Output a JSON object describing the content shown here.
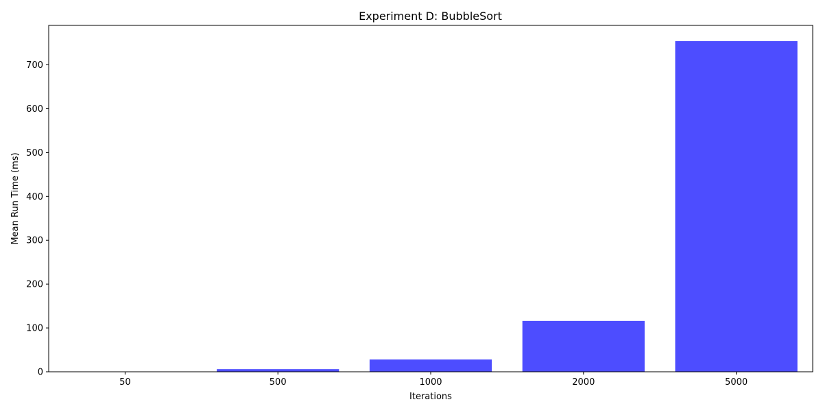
{
  "chart_data": {
    "type": "bar",
    "title": "Experiment D: BubbleSort",
    "xlabel": "Iterations",
    "ylabel": "Mean Run Time (ms)",
    "categories": [
      "50",
      "500",
      "1000",
      "2000",
      "5000"
    ],
    "values": [
      0.3,
      6,
      28,
      116,
      754
    ],
    "ylim": [
      0,
      790
    ],
    "yticks": [
      0,
      100,
      200,
      300,
      400,
      500,
      600,
      700
    ],
    "grid": false,
    "legend": "none",
    "bar_color": "#4d4dff"
  }
}
